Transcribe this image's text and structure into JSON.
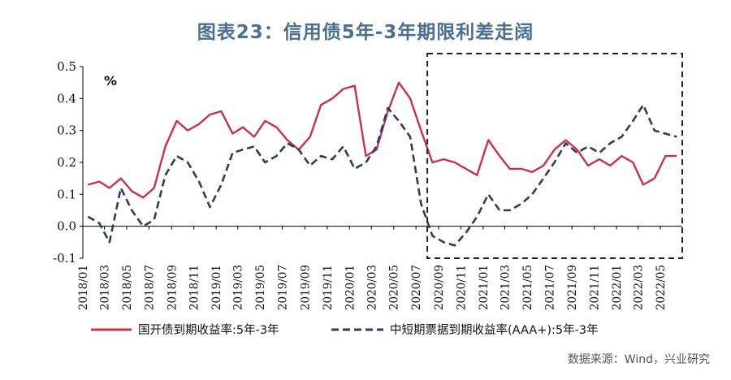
{
  "title": "图表23：信用债5年-3年期限利差走阔",
  "source": "数据来源：Wind，兴业研究",
  "unit_label": "%",
  "colors": {
    "cdb": "#c8324a",
    "mtn": "#2c3e5c",
    "highlight_box": "#222222"
  },
  "chart_data": {
    "type": "line",
    "title": "图表23：信用债5年-3年期限利差走阔",
    "ylabel": "%",
    "ylim": [
      -0.1,
      0.5
    ],
    "yticks": [
      "0.5",
      "0.4",
      "0.3",
      "0.2",
      "0.1",
      "0.0",
      "-0.1"
    ],
    "xlim": [
      "2018-01-01",
      "2022-06-30"
    ],
    "xticks": [
      "2018/01",
      "2018/03",
      "2018/05",
      "2018/07",
      "2018/09",
      "2018/11",
      "2019/01",
      "2019/03",
      "2019/05",
      "2019/07",
      "2019/09",
      "2019/11",
      "2020/01",
      "2020/03",
      "2020/05",
      "2020/07",
      "2020/09",
      "2020/11",
      "2021/01",
      "2021/03",
      "2021/05",
      "2021/07",
      "2021/09",
      "2021/11",
      "2022/01",
      "2022/03",
      "2022/05"
    ],
    "highlight": {
      "x_from": "2020-08-01",
      "x_to": "2022-06-30",
      "y_from": -0.1,
      "y_to": 0.5,
      "style": "dashed"
    },
    "legend_position": "bottom",
    "series": [
      {
        "name": "国开债到期收益率:5年-3年",
        "style": "solid",
        "x": [
          "2018-01",
          "2018-02",
          "2018-03",
          "2018-04",
          "2018-05",
          "2018-06",
          "2018-07",
          "2018-08",
          "2018-09",
          "2018-10",
          "2018-11",
          "2018-12",
          "2019-01",
          "2019-02",
          "2019-03",
          "2019-04",
          "2019-05",
          "2019-06",
          "2019-07",
          "2019-08",
          "2019-09",
          "2019-10",
          "2019-11",
          "2019-12",
          "2020-01",
          "2020-02",
          "2020-03",
          "2020-04",
          "2020-05",
          "2020-06",
          "2020-07",
          "2020-08",
          "2020-09",
          "2020-10",
          "2020-11",
          "2020-12",
          "2021-01",
          "2021-02",
          "2021-03",
          "2021-04",
          "2021-05",
          "2021-06",
          "2021-07",
          "2021-08",
          "2021-09",
          "2021-10",
          "2021-11",
          "2021-12",
          "2022-01",
          "2022-02",
          "2022-03",
          "2022-04",
          "2022-05",
          "2022-06"
        ],
        "values": [
          0.13,
          0.14,
          0.12,
          0.15,
          0.11,
          0.09,
          0.12,
          0.25,
          0.33,
          0.3,
          0.32,
          0.35,
          0.36,
          0.29,
          0.31,
          0.28,
          0.33,
          0.31,
          0.27,
          0.24,
          0.28,
          0.38,
          0.4,
          0.43,
          0.44,
          0.22,
          0.24,
          0.36,
          0.45,
          0.4,
          0.3,
          0.2,
          0.21,
          0.2,
          0.18,
          0.16,
          0.27,
          0.22,
          0.18,
          0.18,
          0.17,
          0.19,
          0.24,
          0.27,
          0.24,
          0.19,
          0.21,
          0.19,
          0.22,
          0.2,
          0.13,
          0.15,
          0.22,
          0.22
        ]
      },
      {
        "name": "中短期票据到期收益率(AAA+):5年-3年",
        "style": "dashed",
        "x": [
          "2018-01",
          "2018-02",
          "2018-03",
          "2018-04",
          "2018-05",
          "2018-06",
          "2018-07",
          "2018-08",
          "2018-09",
          "2018-10",
          "2018-11",
          "2018-12",
          "2019-01",
          "2019-02",
          "2019-03",
          "2019-04",
          "2019-05",
          "2019-06",
          "2019-07",
          "2019-08",
          "2019-09",
          "2019-10",
          "2019-11",
          "2019-12",
          "2020-01",
          "2020-02",
          "2020-03",
          "2020-04",
          "2020-05",
          "2020-06",
          "2020-07",
          "2020-08",
          "2020-09",
          "2020-10",
          "2020-11",
          "2020-12",
          "2021-01",
          "2021-02",
          "2021-03",
          "2021-04",
          "2021-05",
          "2021-06",
          "2021-07",
          "2021-08",
          "2021-09",
          "2021-10",
          "2021-11",
          "2021-12",
          "2022-01",
          "2022-02",
          "2022-03",
          "2022-04",
          "2022-05",
          "2022-06"
        ],
        "values": [
          0.03,
          0.01,
          -0.05,
          0.12,
          0.05,
          0.0,
          0.02,
          0.16,
          0.22,
          0.2,
          0.14,
          0.06,
          0.13,
          0.23,
          0.24,
          0.25,
          0.2,
          0.22,
          0.26,
          0.24,
          0.19,
          0.22,
          0.21,
          0.25,
          0.18,
          0.2,
          0.25,
          0.37,
          0.33,
          0.28,
          0.07,
          -0.03,
          -0.05,
          -0.06,
          -0.02,
          0.03,
          0.1,
          0.05,
          0.05,
          0.07,
          0.1,
          0.15,
          0.2,
          0.26,
          0.23,
          0.25,
          0.23,
          0.26,
          0.28,
          0.33,
          0.38,
          0.3,
          0.29,
          0.28
        ]
      }
    ]
  }
}
